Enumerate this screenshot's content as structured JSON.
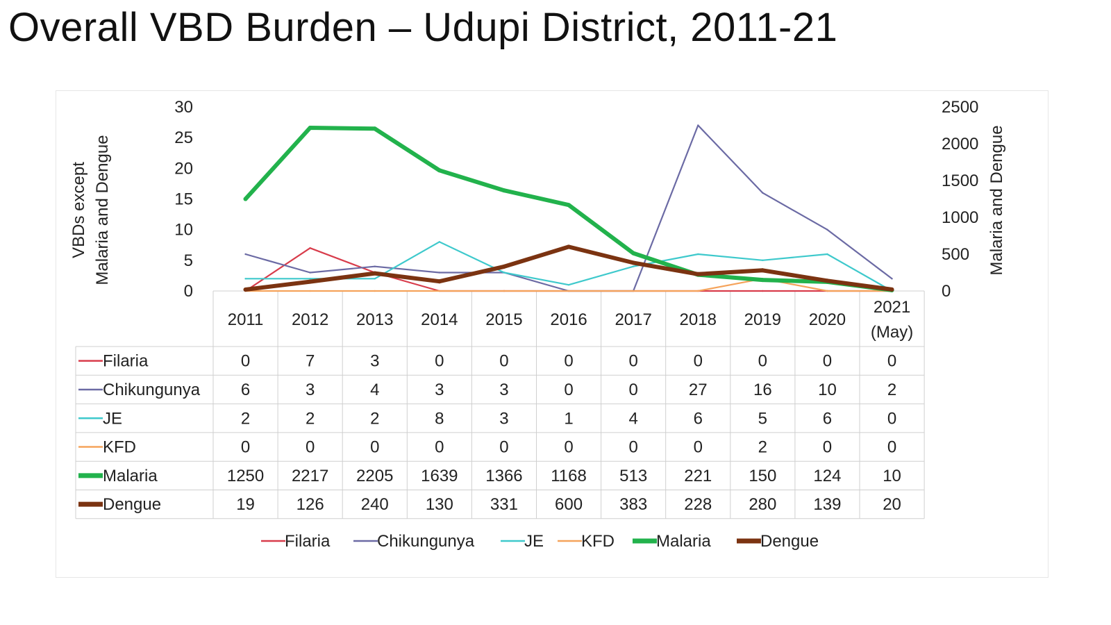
{
  "page": {
    "title": "Overall VBD Burden – Udupi District, 2011-21"
  },
  "chart_data": {
    "type": "line",
    "title": "Overall VBD Burden – Udupi District, 2011-21",
    "categories": [
      "2011",
      "2012",
      "2013",
      "2014",
      "2015",
      "2016",
      "2017",
      "2018",
      "2019",
      "2020",
      "2021 (May)"
    ],
    "category_lines": [
      [
        "2011"
      ],
      [
        "2012"
      ],
      [
        "2013"
      ],
      [
        "2014"
      ],
      [
        "2015"
      ],
      [
        "2016"
      ],
      [
        "2017"
      ],
      [
        "2018"
      ],
      [
        "2019"
      ],
      [
        "2020"
      ],
      [
        "2021",
        "(May)"
      ]
    ],
    "y_left": {
      "label_lines": [
        "VBDs except",
        "Malaria and Dengue"
      ],
      "min": 0,
      "max": 30,
      "ticks": [
        0,
        5,
        10,
        15,
        20,
        25,
        30
      ]
    },
    "y_right": {
      "label": "Malaria and Dengue",
      "min": 0,
      "max": 2500,
      "ticks": [
        0,
        500,
        1000,
        1500,
        2000,
        2500
      ]
    },
    "series": [
      {
        "name": "Filaria",
        "axis": "left",
        "color": "#d83c4b",
        "width": "thin",
        "values": [
          0,
          7,
          3,
          0,
          0,
          0,
          0,
          0,
          0,
          0,
          0
        ]
      },
      {
        "name": "Chikungunya",
        "axis": "left",
        "color": "#6b6aa4",
        "width": "thin",
        "values": [
          6,
          3,
          4,
          3,
          3,
          0,
          0,
          27,
          16,
          10,
          2
        ]
      },
      {
        "name": "JE",
        "axis": "left",
        "color": "#3ec9cc",
        "width": "thin",
        "values": [
          2,
          2,
          2,
          8,
          3,
          1,
          4,
          6,
          5,
          6,
          0
        ]
      },
      {
        "name": "KFD",
        "axis": "left",
        "color": "#f5a35b",
        "width": "thin",
        "values": [
          0,
          0,
          0,
          0,
          0,
          0,
          0,
          0,
          2,
          0,
          0
        ]
      },
      {
        "name": "Malaria",
        "axis": "right",
        "color": "#22b24c",
        "width": "thick",
        "values": [
          1250,
          2217,
          2205,
          1639,
          1366,
          1168,
          513,
          221,
          150,
          124,
          10
        ]
      },
      {
        "name": "Dengue",
        "axis": "right",
        "color": "#7b3311",
        "width": "thick",
        "values": [
          19,
          126,
          240,
          130,
          331,
          600,
          383,
          228,
          280,
          139,
          20
        ]
      }
    ],
    "grid": false,
    "data_table": true,
    "legend_position": "bottom"
  }
}
